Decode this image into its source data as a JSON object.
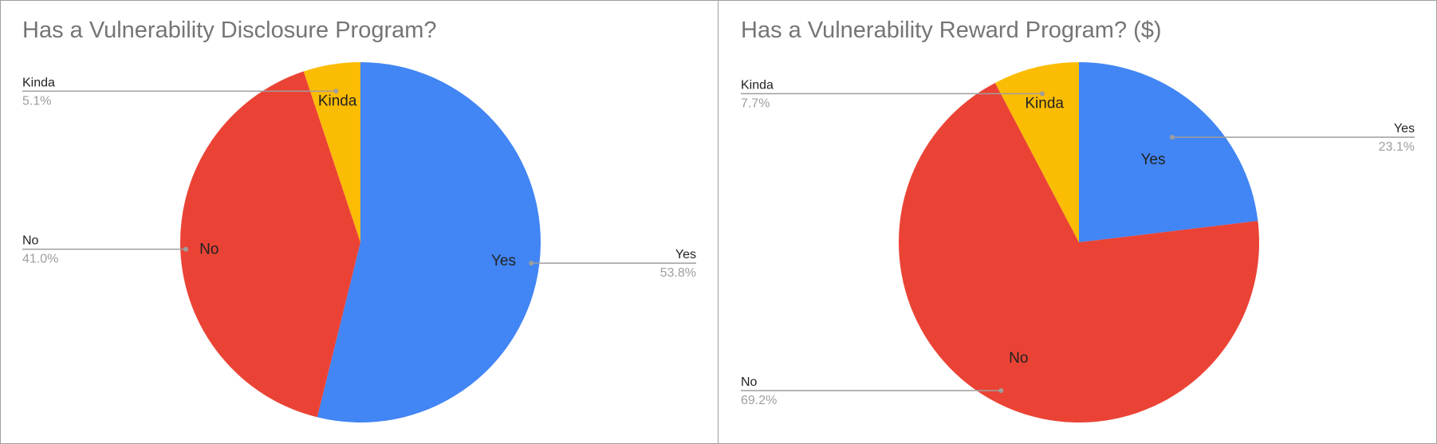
{
  "colors": {
    "yes": "#4285f4",
    "no": "#ea4335",
    "kinda": "#fbbc04",
    "leader": "#9e9e9e",
    "percent_text": "#9e9e9e",
    "label_text": "#222222"
  },
  "chart_data": [
    {
      "type": "pie",
      "title": "Has a Vulnerability Disclosure Program?",
      "categories": [
        "Yes",
        "No",
        "Kinda"
      ],
      "values": [
        53.8,
        41.0,
        5.1
      ],
      "percent_labels": [
        "53.8%",
        "41.0%",
        "5.1%"
      ],
      "colors": [
        "#4285f4",
        "#ea4335",
        "#fbbc04"
      ],
      "start_angle": "12 o'clock",
      "direction": "clockwise"
    },
    {
      "type": "pie",
      "title": "Has a Vulnerability Reward Program? ($)",
      "categories": [
        "Yes",
        "No",
        "Kinda"
      ],
      "values": [
        23.1,
        69.2,
        7.7
      ],
      "percent_labels": [
        "23.1%",
        "69.2%",
        "7.7%"
      ],
      "colors": [
        "#4285f4",
        "#ea4335",
        "#fbbc04"
      ],
      "start_angle": "12 o'clock",
      "direction": "clockwise"
    }
  ]
}
